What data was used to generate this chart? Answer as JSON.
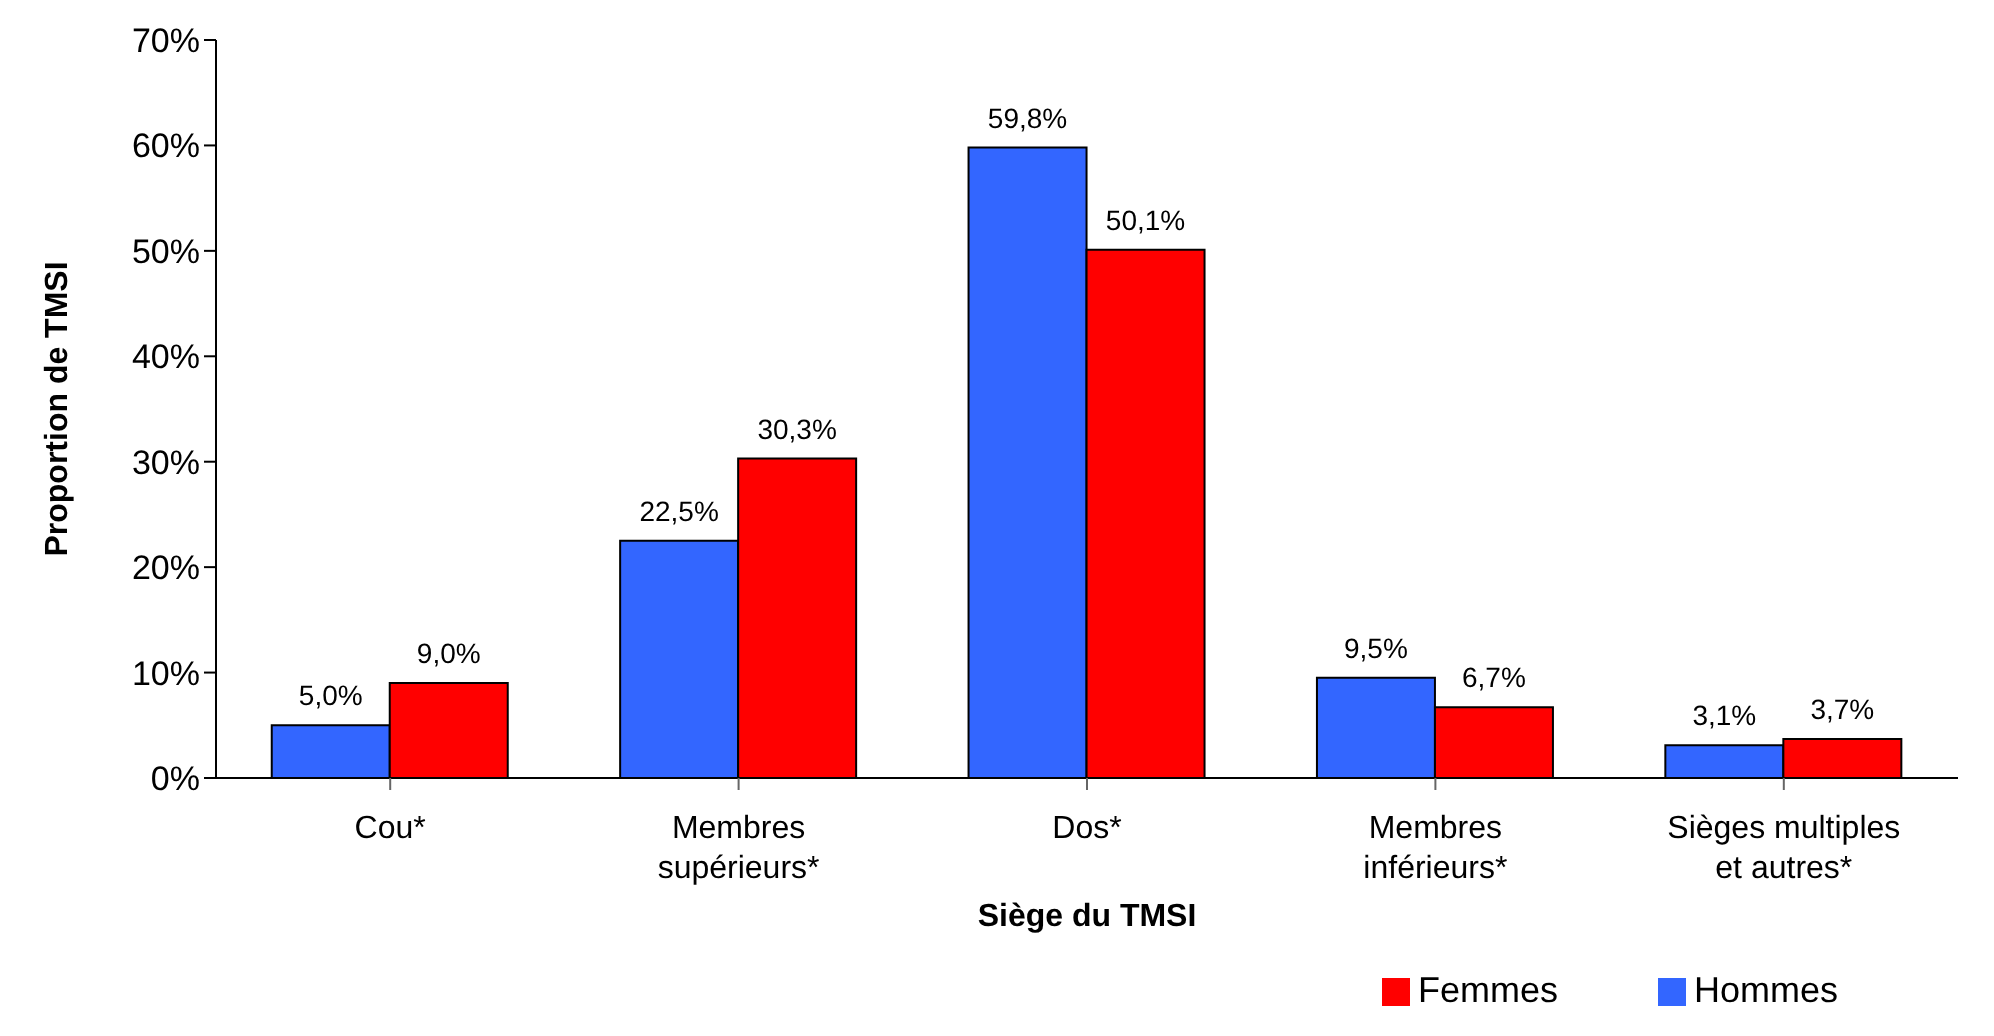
{
  "chart_data": {
    "type": "bar",
    "xlabel": "Siège du TMSI",
    "ylabel": "Proportion de TMSI",
    "categories": [
      "Cou*",
      "Membres supérieurs*",
      "Dos*",
      "Membres inférieurs*",
      "Sièges multiples et autres*"
    ],
    "series": [
      {
        "name": "Hommes",
        "color": "#3366ff",
        "values": [
          5.0,
          22.5,
          59.8,
          9.5,
          3.1
        ],
        "value_labels": [
          "5,0%",
          "22,5%",
          "59,8%",
          "9,5%",
          "3,1%"
        ]
      },
      {
        "name": "Femmes",
        "color": "#ff0000",
        "values": [
          9.0,
          30.3,
          50.1,
          6.7,
          3.7
        ],
        "value_labels": [
          "9,0%",
          "30,3%",
          "50,1%",
          "6,7%",
          "3,7%"
        ]
      }
    ],
    "ylim": [
      0,
      70
    ],
    "yticks": [
      {
        "value": 0,
        "label": "0%"
      },
      {
        "value": 10,
        "label": "10%"
      },
      {
        "value": 20,
        "label": "20%"
      },
      {
        "value": 30,
        "label": "30%"
      },
      {
        "value": 40,
        "label": "40%"
      },
      {
        "value": 50,
        "label": "50%"
      },
      {
        "value": 60,
        "label": "60%"
      },
      {
        "value": 70,
        "label": "70%"
      }
    ],
    "legend": "bottom right"
  }
}
